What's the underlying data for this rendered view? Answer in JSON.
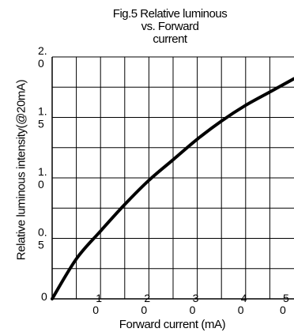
{
  "chart_data": {
    "type": "line",
    "title_lines": [
      "Fig.5 Relative luminous",
      "vs. Forward",
      "current"
    ],
    "xlabel": "Forward current (mA)",
    "ylabel": "Relative luminous intensity(@20mA)",
    "xlim": [
      0,
      50
    ],
    "ylim": [
      0,
      2.0
    ],
    "x_ticks": [
      {
        "value": 10,
        "line1": "1",
        "line2": "0"
      },
      {
        "value": 20,
        "line1": "2",
        "line2": "0"
      },
      {
        "value": 30,
        "line1": "3",
        "line2": "0"
      },
      {
        "value": 40,
        "line1": "4",
        "line2": "0"
      },
      {
        "value": 50,
        "line1": "5",
        "line2": "0"
      }
    ],
    "y_ticks": [
      {
        "value": 0,
        "line1": "0",
        "line2": ""
      },
      {
        "value": 0.5,
        "line1": "0.",
        "line2": "5"
      },
      {
        "value": 1.0,
        "line1": "1.",
        "line2": "0"
      },
      {
        "value": 1.5,
        "line1": "1.",
        "line2": "5"
      },
      {
        "value": 2.0,
        "line1": "2.",
        "line2": "0"
      }
    ],
    "grid": true,
    "grid_x_step": 5,
    "grid_y_step": 0.25,
    "series": [
      {
        "x": [
          0,
          5,
          10,
          15,
          20,
          25,
          30,
          35,
          40,
          45,
          50
        ],
        "y": [
          0,
          0.33,
          0.56,
          0.78,
          0.98,
          1.15,
          1.32,
          1.47,
          1.6,
          1.71,
          1.82
        ]
      }
    ]
  }
}
